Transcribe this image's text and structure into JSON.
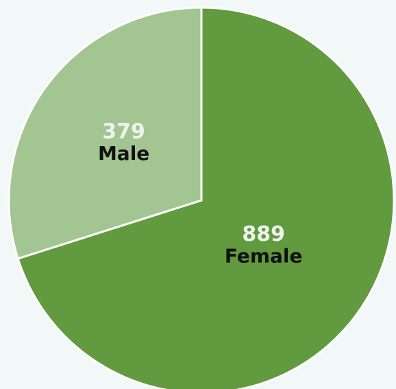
{
  "chart_data": {
    "type": "pie",
    "categories": [
      "Female",
      "Male"
    ],
    "values": [
      889,
      379
    ],
    "colors": [
      "#629b3f",
      "#a3c592"
    ],
    "start_angle": 0,
    "direction": "clockwise"
  }
}
